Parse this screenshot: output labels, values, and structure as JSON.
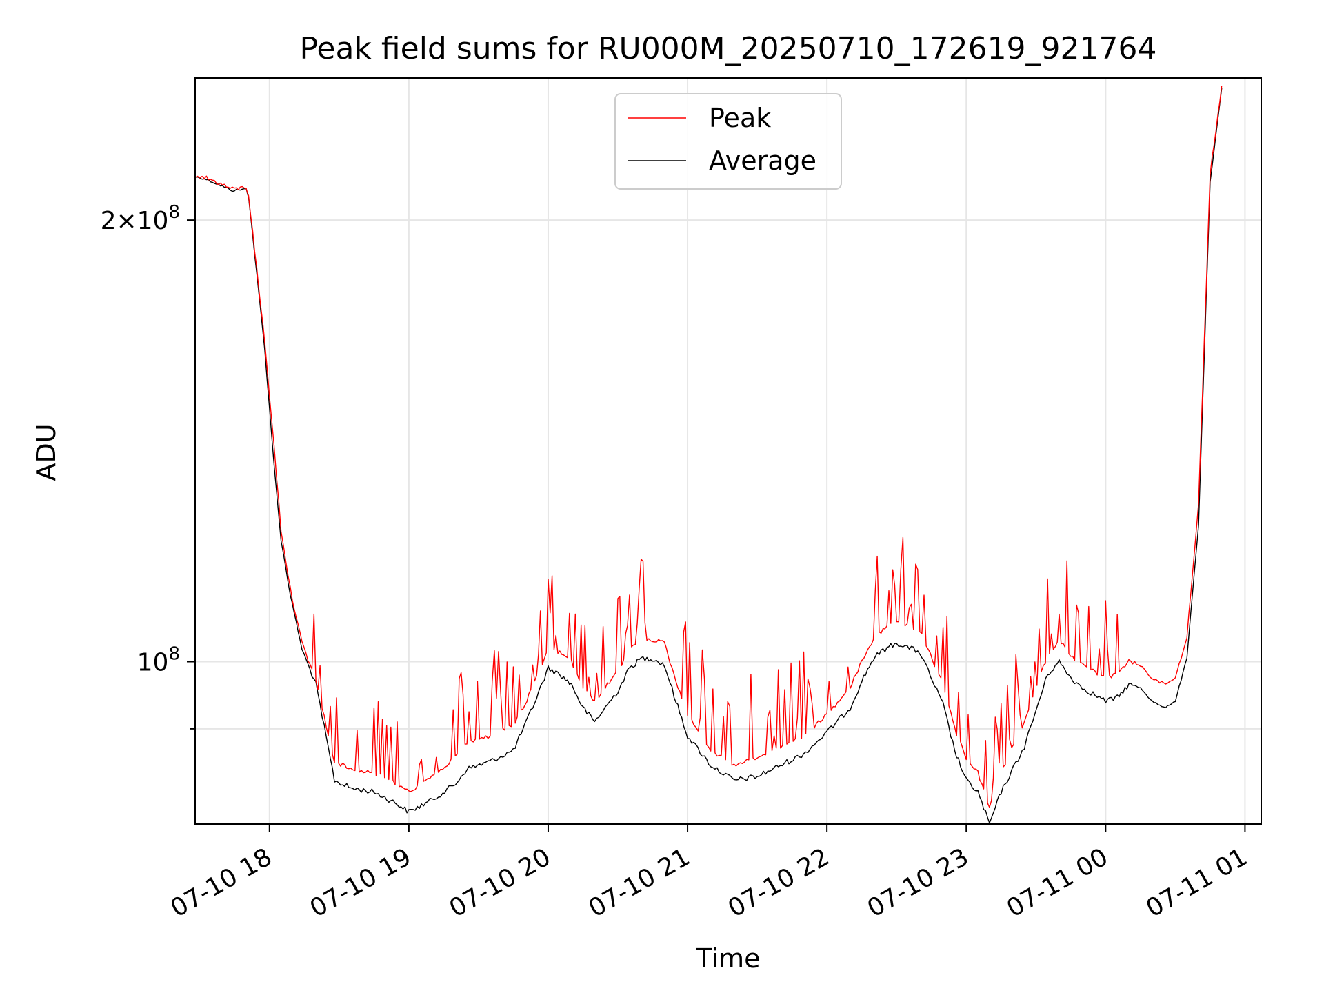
{
  "chart_data": {
    "type": "line",
    "title": "Peak field sums for RU000M_20250710_172619_921764",
    "xlabel": "Time",
    "ylabel": "ADU",
    "y_scale": "log",
    "ylim": [
      77500000,
      250000000
    ],
    "xlim": [
      "2025-07-10 17:28",
      "2025-07-11 01:07"
    ],
    "x_ticks": [
      {
        "x": "2025-07-10 18:00",
        "label": "07-10 18"
      },
      {
        "x": "2025-07-10 19:00",
        "label": "07-10 19"
      },
      {
        "x": "2025-07-10 20:00",
        "label": "07-10 20"
      },
      {
        "x": "2025-07-10 21:00",
        "label": "07-10 21"
      },
      {
        "x": "2025-07-10 22:00",
        "label": "07-10 22"
      },
      {
        "x": "2025-07-10 23:00",
        "label": "07-10 23"
      },
      {
        "x": "2025-07-11 00:00",
        "label": "07-11 00"
      },
      {
        "x": "2025-07-11 01:00",
        "label": "07-11 01"
      }
    ],
    "y_major_ticks": [
      {
        "y": 100000000,
        "base": "10",
        "exp": "8",
        "coef": ""
      },
      {
        "y": 200000000,
        "base": "10",
        "exp": "8",
        "coef": "2×"
      }
    ],
    "y_minor_ticks": [
      90000000
    ],
    "grid": true,
    "legend": "upper center",
    "colors": {
      "peak": "#ff0000",
      "average": "#000000",
      "grid": "#e6e6e6",
      "axes": "#000000"
    },
    "series": [
      {
        "name": "Peak",
        "color": "#ff0000",
        "spiky": true,
        "x": [
          "2025-07-10 17:28",
          "2025-07-10 17:32",
          "2025-07-10 17:38",
          "2025-07-10 17:44",
          "2025-07-10 17:50",
          "2025-07-10 17:51",
          "2025-07-10 17:58",
          "2025-07-10 18:02",
          "2025-07-10 18:05",
          "2025-07-10 18:09",
          "2025-07-10 18:14",
          "2025-07-10 18:20",
          "2025-07-10 18:28",
          "2025-07-10 18:35",
          "2025-07-10 18:45",
          "2025-07-10 18:55",
          "2025-07-10 19:00",
          "2025-07-10 19:10",
          "2025-07-10 19:20",
          "2025-07-10 19:25",
          "2025-07-10 19:35",
          "2025-07-10 19:45",
          "2025-07-10 19:50",
          "2025-07-10 19:55",
          "2025-07-10 20:00",
          "2025-07-10 20:05",
          "2025-07-10 20:10",
          "2025-07-10 20:15",
          "2025-07-10 20:20",
          "2025-07-10 20:30",
          "2025-07-10 20:35",
          "2025-07-10 20:40",
          "2025-07-10 20:45",
          "2025-07-10 20:50",
          "2025-07-10 20:55",
          "2025-07-10 21:00",
          "2025-07-10 21:10",
          "2025-07-10 21:20",
          "2025-07-10 21:30",
          "2025-07-10 21:40",
          "2025-07-10 21:50",
          "2025-07-10 22:00",
          "2025-07-10 22:10",
          "2025-07-10 22:15",
          "2025-07-10 22:20",
          "2025-07-10 22:25",
          "2025-07-10 22:30",
          "2025-07-10 22:40",
          "2025-07-10 22:50",
          "2025-07-10 22:55",
          "2025-07-10 23:00",
          "2025-07-10 23:05",
          "2025-07-10 23:10",
          "2025-07-10 23:15",
          "2025-07-10 23:25",
          "2025-07-10 23:35",
          "2025-07-10 23:40",
          "2025-07-10 23:45",
          "2025-07-10 23:50",
          "2025-07-11 00:00",
          "2025-07-11 00:05",
          "2025-07-11 00:10",
          "2025-07-11 00:15",
          "2025-07-11 00:20",
          "2025-07-11 00:25",
          "2025-07-11 00:30",
          "2025-07-11 00:35",
          "2025-07-11 00:40",
          "2025-07-11 00:45",
          "2025-07-11 00:50"
        ],
        "y": [
          214500000,
          214000000,
          212000000,
          210000000,
          210500000,
          208000000,
          165000000,
          140000000,
          123000000,
          112000000,
          103000000,
          97000000,
          85500000,
          84500000,
          84000000,
          82500000,
          81500000,
          83500000,
          86000000,
          88000000,
          89000000,
          90500000,
          93500000,
          97500000,
          102000000,
          101500000,
          100000000,
          96000000,
          94000000,
          98500000,
          102000000,
          103500000,
          103500000,
          103000000,
          97000000,
          92000000,
          87000000,
          85000000,
          86000000,
          87500000,
          89000000,
          92000000,
          96000000,
          100000000,
          103500000,
          105500000,
          106500000,
          105000000,
          96500000,
          90000000,
          86000000,
          84000000,
          79500000,
          84000000,
          91000000,
          101000000,
          103500000,
          101000000,
          99500000,
          97500000,
          98000000,
          100000000,
          99500000,
          97500000,
          96500000,
          97500000,
          104000000,
          128000000,
          215000000,
          247000000
        ]
      },
      {
        "name": "Average",
        "color": "#000000",
        "spiky": false,
        "x": [
          "2025-07-10 17:28",
          "2025-07-10 17:32",
          "2025-07-10 17:38",
          "2025-07-10 17:44",
          "2025-07-10 17:50",
          "2025-07-10 17:51",
          "2025-07-10 17:58",
          "2025-07-10 18:02",
          "2025-07-10 18:05",
          "2025-07-10 18:09",
          "2025-07-10 18:14",
          "2025-07-10 18:20",
          "2025-07-10 18:28",
          "2025-07-10 18:35",
          "2025-07-10 18:45",
          "2025-07-10 18:55",
          "2025-07-10 19:00",
          "2025-07-10 19:10",
          "2025-07-10 19:20",
          "2025-07-10 19:25",
          "2025-07-10 19:35",
          "2025-07-10 19:45",
          "2025-07-10 19:50",
          "2025-07-10 19:55",
          "2025-07-10 20:00",
          "2025-07-10 20:05",
          "2025-07-10 20:10",
          "2025-07-10 20:15",
          "2025-07-10 20:20",
          "2025-07-10 20:30",
          "2025-07-10 20:35",
          "2025-07-10 20:40",
          "2025-07-10 20:45",
          "2025-07-10 20:50",
          "2025-07-10 20:55",
          "2025-07-10 21:00",
          "2025-07-10 21:10",
          "2025-07-10 21:20",
          "2025-07-10 21:30",
          "2025-07-10 21:40",
          "2025-07-10 21:50",
          "2025-07-10 22:00",
          "2025-07-10 22:10",
          "2025-07-10 22:15",
          "2025-07-10 22:20",
          "2025-07-10 22:25",
          "2025-07-10 22:30",
          "2025-07-10 22:40",
          "2025-07-10 22:50",
          "2025-07-10 22:55",
          "2025-07-10 23:00",
          "2025-07-10 23:05",
          "2025-07-10 23:10",
          "2025-07-10 23:15",
          "2025-07-10 23:25",
          "2025-07-10 23:35",
          "2025-07-10 23:40",
          "2025-07-10 23:45",
          "2025-07-10 23:50",
          "2025-07-11 00:00",
          "2025-07-11 00:05",
          "2025-07-11 00:10",
          "2025-07-11 00:15",
          "2025-07-11 00:20",
          "2025-07-11 00:25",
          "2025-07-11 00:30",
          "2025-07-11 00:35",
          "2025-07-11 00:40",
          "2025-07-11 00:45",
          "2025-07-11 00:50"
        ],
        "y": [
          214000000,
          213500000,
          211500000,
          209500000,
          210000000,
          207500000,
          163000000,
          136000000,
          121000000,
          111000000,
          102000000,
          96500000,
          83000000,
          82000000,
          81500000,
          80000000,
          79000000,
          80500000,
          82500000,
          84500000,
          85500000,
          87000000,
          90500000,
          94500000,
          99000000,
          98000000,
          96500000,
          93000000,
          91000000,
          95500000,
          99000000,
          100500000,
          100500000,
          99500000,
          94000000,
          89000000,
          85000000,
          83000000,
          83500000,
          85000000,
          86500000,
          89500000,
          93000000,
          97000000,
          100500000,
          102000000,
          103000000,
          101500000,
          93500000,
          87000000,
          83000000,
          81500000,
          77500000,
          81500000,
          87500000,
          98000000,
          100000000,
          97500000,
          96000000,
          94000000,
          94500000,
          96500000,
          96000000,
          94000000,
          93000000,
          94000000,
          100500000,
          124000000,
          212000000,
          246000000
        ]
      }
    ]
  }
}
